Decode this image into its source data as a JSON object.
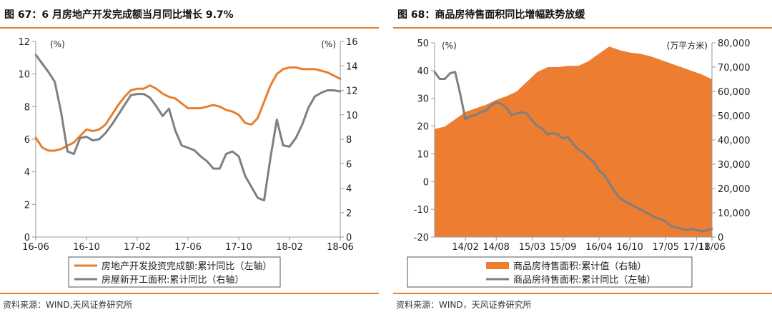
{
  "left": {
    "title": "图 67：6 月房地产开发完成额当月同比增长 9.7%",
    "source": "资料来源：WIND,天风证券研究所",
    "chart_data": {
      "type": "line",
      "left_unit": "(%)",
      "right_unit": "(%)",
      "left_ylim": [
        0,
        12
      ],
      "left_yticks": [
        "0",
        "2",
        "4",
        "6",
        "8",
        "10",
        "12"
      ],
      "right_ylim": [
        0,
        16
      ],
      "right_yticks": [
        "0",
        "2",
        "4",
        "6",
        "8",
        "10",
        "12",
        "14",
        "16"
      ],
      "x_range": [
        0,
        24
      ],
      "x_ticks": [
        {
          "label": "16-06",
          "x": 0
        },
        {
          "label": "16-10",
          "x": 4
        },
        {
          "label": "17-02",
          "x": 8
        },
        {
          "label": "17-06",
          "x": 12
        },
        {
          "label": "17-10",
          "x": 16
        },
        {
          "label": "18-02",
          "x": 20
        },
        {
          "label": "18-06",
          "x": 24
        }
      ],
      "series": [
        {
          "name": "房地产开发投资完成额:累计同比（左轴）",
          "axis": "left",
          "color": "#E87E2E",
          "x": [
            0,
            0.5,
            1,
            1.5,
            2,
            2.5,
            3,
            3.5,
            4,
            4.5,
            5,
            5.5,
            6,
            6.5,
            7,
            7.5,
            8,
            8.5,
            9,
            9.5,
            10,
            10.5,
            11,
            11.5,
            12,
            12.5,
            13,
            13.5,
            14,
            14.5,
            15,
            15.5,
            16,
            16.5,
            17,
            17.5,
            18,
            18.5,
            19,
            19.5,
            20,
            20.5,
            21,
            21.5,
            22,
            22.5,
            23,
            23.5,
            24
          ],
          "values": [
            6.1,
            5.5,
            5.3,
            5.3,
            5.4,
            5.6,
            5.8,
            6.2,
            6.6,
            6.5,
            6.6,
            6.9,
            7.5,
            8.1,
            8.6,
            9.0,
            9.1,
            9.1,
            9.3,
            9.1,
            8.8,
            8.6,
            8.5,
            8.2,
            7.9,
            7.9,
            7.9,
            8.0,
            8.1,
            8.0,
            7.8,
            7.7,
            7.5,
            7.0,
            6.9,
            7.3,
            8.3,
            9.3,
            10.0,
            10.3,
            10.4,
            10.4,
            10.3,
            10.3,
            10.3,
            10.2,
            10.1,
            9.9,
            9.7
          ]
        },
        {
          "name": "房屋新开工面积:累计同比（右轴）",
          "axis": "right",
          "color": "#7F7F7F",
          "x": [
            0,
            0.5,
            1,
            1.5,
            2,
            2.5,
            3,
            3.5,
            4,
            4.5,
            5,
            5.5,
            6,
            6.5,
            7,
            7.5,
            8,
            8.5,
            9,
            9.5,
            10,
            10.5,
            11,
            11.5,
            12,
            12.5,
            13,
            13.5,
            14,
            14.5,
            15,
            15.5,
            16,
            16.5,
            17,
            17.5,
            18,
            18.5,
            19,
            19.5,
            20,
            20.5,
            21,
            21.5,
            22,
            22.5,
            23,
            23.5,
            24
          ],
          "values": [
            14.9,
            14.2,
            13.5,
            12.7,
            10.2,
            7.0,
            6.8,
            8.1,
            8.2,
            7.9,
            8.0,
            8.5,
            9.2,
            10.0,
            10.8,
            11.6,
            11.7,
            11.7,
            11.4,
            10.7,
            9.9,
            10.5,
            8.7,
            7.5,
            7.3,
            7.1,
            6.6,
            6.2,
            5.6,
            5.6,
            6.8,
            7.0,
            6.6,
            5.0,
            4.1,
            3.2,
            3.0,
            6.5,
            9.6,
            7.5,
            7.4,
            8.1,
            9.2,
            10.6,
            11.5,
            11.8,
            12.0,
            12.0,
            11.9
          ]
        }
      ]
    }
  },
  "right": {
    "title": "图 68：商品房待售面积同比增幅跌势放缓",
    "source": "资料来源：WIND，天风证券研究所",
    "chart_data": {
      "type": "area",
      "left_unit": "(%)",
      "right_unit": "(万平方米)",
      "left_ylim": [
        -20,
        50
      ],
      "left_yticks": [
        "-20",
        "-10",
        "0",
        "10",
        "20",
        "30",
        "40",
        "50"
      ],
      "right_ylim": [
        0,
        80000
      ],
      "right_yticks": [
        "0",
        "10,000",
        "20,000",
        "30,000",
        "40,000",
        "50,000",
        "60,000",
        "70,000",
        "80,000"
      ],
      "x_range": [
        0,
        54
      ],
      "x_ticks": [
        {
          "label": "14/02",
          "x": 6
        },
        {
          "label": "14/08",
          "x": 12
        },
        {
          "label": "15/03",
          "x": 19
        },
        {
          "label": "15/09",
          "x": 25
        },
        {
          "label": "16/04",
          "x": 32
        },
        {
          "label": "16/10",
          "x": 38
        },
        {
          "label": "17/05",
          "x": 45
        },
        {
          "label": "17/11",
          "x": 51
        },
        {
          "label": "18/06",
          "x": 54
        }
      ],
      "series": [
        {
          "name": "商品房待售面积:累计值（右轴）",
          "axis": "right",
          "color": "#ED7D31",
          "x": [
            0,
            2,
            4,
            6,
            8,
            10,
            12,
            14,
            16,
            18,
            20,
            22,
            24,
            26,
            28,
            30,
            32,
            34,
            36,
            38,
            40,
            42,
            44,
            46,
            48,
            50,
            52,
            54
          ],
          "values": [
            44500,
            45500,
            48500,
            51500,
            53000,
            54500,
            56500,
            58000,
            60000,
            64000,
            68000,
            70000,
            70000,
            70500,
            70500,
            72500,
            75500,
            78500,
            77000,
            76000,
            75500,
            74500,
            73000,
            71500,
            70000,
            68500,
            67000,
            65000
          ]
        },
        {
          "name": "商品房待售面积:累计同比（左轴）",
          "axis": "left",
          "color": "#7F7F7F",
          "x": [
            0,
            1,
            2,
            3,
            4,
            5,
            6,
            7,
            8,
            9,
            10,
            11,
            12,
            13,
            14,
            15,
            16,
            17,
            18,
            19,
            20,
            21,
            22,
            23,
            24,
            25,
            26,
            27,
            28,
            29,
            30,
            31,
            32,
            33,
            34,
            35,
            36,
            37,
            38,
            39,
            40,
            41,
            42,
            43,
            44,
            45,
            46,
            47,
            48,
            49,
            50,
            51,
            52,
            53,
            54
          ],
          "values": [
            39.5,
            37.0,
            37.0,
            39.0,
            39.5,
            31.5,
            22.5,
            23.5,
            24.0,
            25.0,
            25.5,
            27.5,
            28.5,
            28.0,
            26.5,
            24.0,
            24.5,
            25.0,
            24.5,
            22.0,
            20.0,
            19.0,
            17.0,
            17.5,
            17.0,
            15.5,
            16.0,
            13.5,
            11.5,
            10.5,
            8.5,
            7.0,
            4.0,
            2.5,
            -0.5,
            -3.5,
            -6.0,
            -7.0,
            -8.0,
            -9.0,
            -10.0,
            -11.0,
            -12.0,
            -13.0,
            -13.5,
            -14.5,
            -16.0,
            -16.5,
            -17.0,
            -17.5,
            -17.0,
            -17.5,
            -18.0,
            -17.5,
            -17.0
          ]
        }
      ]
    }
  }
}
